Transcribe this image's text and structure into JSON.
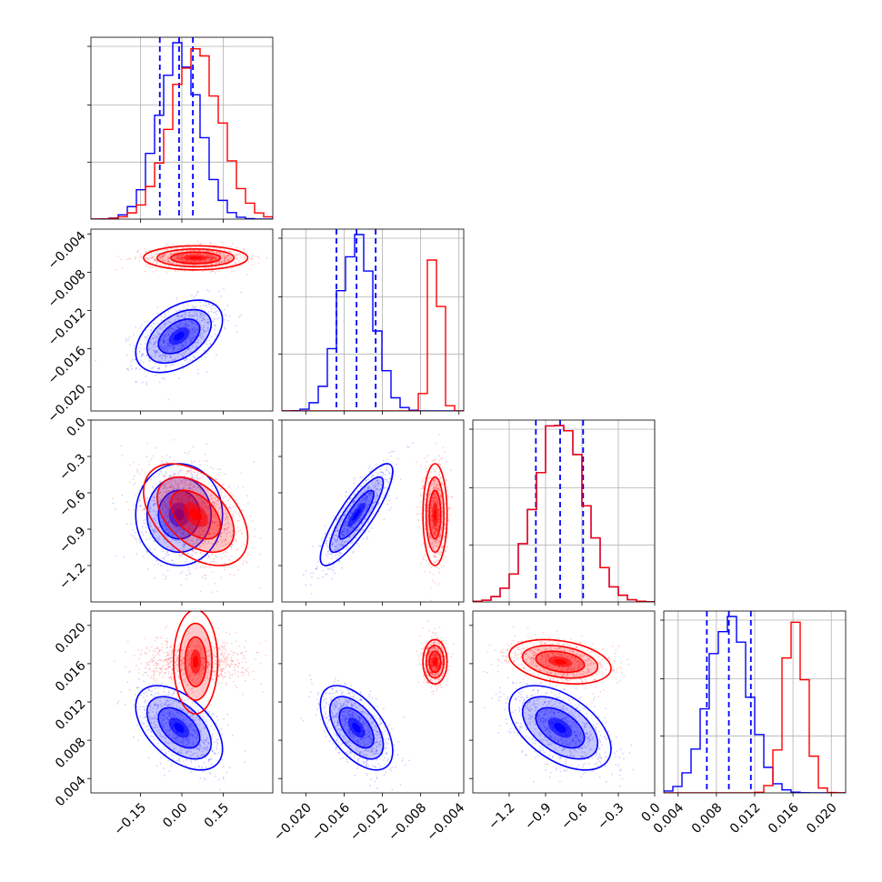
{
  "chart_data": {
    "type": "corner",
    "params": [
      {
        "name": "",
        "range": [
          -0.33,
          0.33
        ],
        "ticks": [
          -0.15,
          0.0,
          0.15
        ],
        "tick_labels": [
          "−0.15",
          "0.00",
          "0.15"
        ]
      },
      {
        "name": "",
        "range": [
          -0.0225,
          -0.0035
        ],
        "ticks": [
          -0.02,
          -0.016,
          -0.012,
          -0.008,
          -0.004
        ],
        "tick_labels": [
          "−0.020",
          "−0.016",
          "−0.012",
          "−0.008",
          "−0.004"
        ]
      },
      {
        "name": "",
        "range": [
          -1.5,
          0.0
        ],
        "ticks": [
          -1.2,
          -0.9,
          -0.6,
          -0.3,
          0.0
        ],
        "tick_labels": [
          "−1.2",
          "−0.9",
          "−0.6",
          "−0.3",
          "0.0"
        ]
      },
      {
        "name": "",
        "range": [
          0.0025,
          0.0215
        ],
        "ticks": [
          0.004,
          0.008,
          0.012,
          0.016,
          0.02
        ],
        "tick_labels": [
          "0.004",
          "0.008",
          "0.012",
          "0.016",
          "0.020"
        ]
      }
    ],
    "series": [
      {
        "name": "",
        "color": "#0000ff",
        "mean": [
          -0.01,
          -0.0147,
          -0.78,
          0.0093
        ],
        "std": [
          0.075,
          0.0018,
          0.2,
          0.0021
        ],
        "quantiles": [
          [
            -0.08,
            -0.01,
            0.04
          ],
          [
            -0.0168,
            -0.0147,
            -0.0127
          ],
          [
            -0.98,
            -0.78,
            -0.59
          ],
          [
            0.007,
            0.0093,
            0.0116
          ]
        ],
        "corr": {
          "0-1": 0.45,
          "0-2": 0.0,
          "0-3": -0.5,
          "1-2": 0.85,
          "1-3": -0.55,
          "2-3": -0.5
        }
      },
      {
        "name": "",
        "color": "#ff0000",
        "mean": [
          0.05,
          -0.0065,
          -0.78,
          0.0162
        ],
        "std": [
          0.09,
          0.0006,
          0.2,
          0.0011
        ],
        "quantiles": [],
        "corr": {
          "0-1": 0.0,
          "0-2": -0.45,
          "0-3": 0.0,
          "1-2": 0.0,
          "1-3": 0.0,
          "2-3": -0.3
        }
      }
    ],
    "grid": true,
    "quantile_line_style": "dashed"
  }
}
